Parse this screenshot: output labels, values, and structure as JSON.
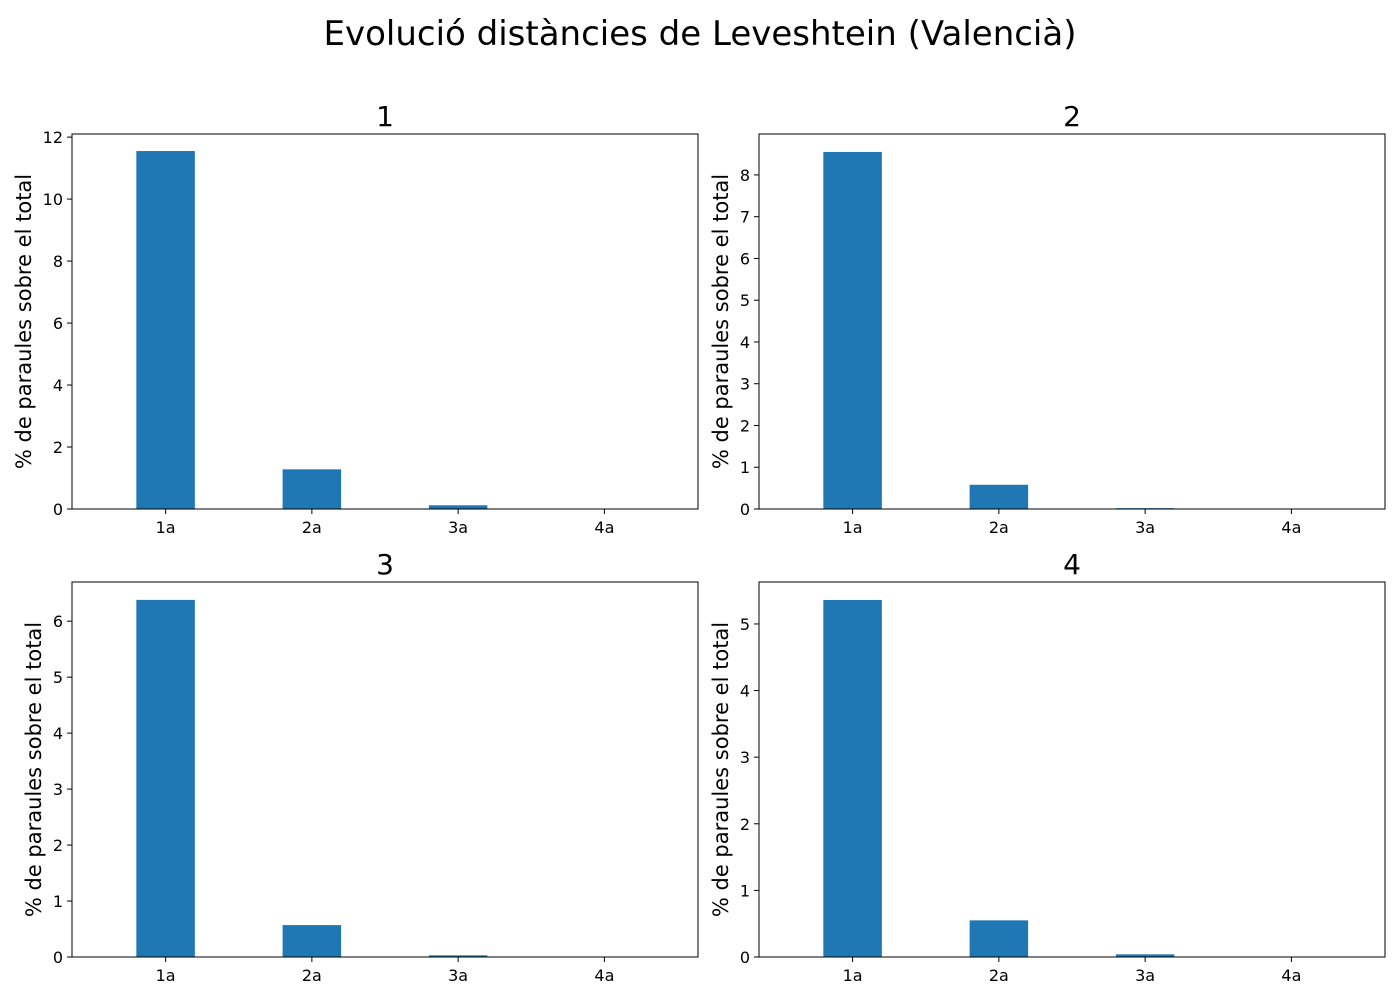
{
  "figure": {
    "title": "Evolució distàncies de Leveshtein (Valencià)"
  },
  "chart_data": [
    {
      "type": "bar",
      "title": "1",
      "categories": [
        "1a",
        "2a",
        "3a",
        "4a"
      ],
      "values": [
        11.55,
        1.28,
        0.12,
        0.0
      ],
      "ylabel": "% de paraules sobre el total",
      "xlabel": "",
      "ylim": [
        0,
        12.1
      ],
      "yticks": [
        0,
        2,
        4,
        6,
        8,
        10,
        12
      ],
      "color": "#1f77b4",
      "grid": false
    },
    {
      "type": "bar",
      "title": "2",
      "categories": [
        "1a",
        "2a",
        "3a",
        "4a"
      ],
      "values": [
        8.55,
        0.58,
        0.02,
        0.0
      ],
      "ylabel": "% de paraules sobre el total",
      "xlabel": "",
      "ylim": [
        0,
        8.98
      ],
      "yticks": [
        0,
        1,
        2,
        3,
        4,
        5,
        6,
        7,
        8
      ],
      "color": "#1f77b4",
      "grid": false
    },
    {
      "type": "bar",
      "title": "3",
      "categories": [
        "1a",
        "2a",
        "3a",
        "4a"
      ],
      "values": [
        6.38,
        0.57,
        0.03,
        0.0
      ],
      "ylabel": "% de paraules sobre el total",
      "xlabel": "",
      "ylim": [
        0,
        6.7
      ],
      "yticks": [
        0,
        1,
        2,
        3,
        4,
        5,
        6
      ],
      "color": "#1f77b4",
      "grid": false
    },
    {
      "type": "bar",
      "title": "4",
      "categories": [
        "1a",
        "2a",
        "3a",
        "4a"
      ],
      "values": [
        5.36,
        0.55,
        0.04,
        0.0
      ],
      "ylabel": "% de paraules sobre el total",
      "xlabel": "",
      "ylim": [
        0,
        5.63
      ],
      "yticks": [
        0,
        1,
        2,
        3,
        4,
        5
      ],
      "color": "#1f77b4",
      "grid": false
    }
  ]
}
